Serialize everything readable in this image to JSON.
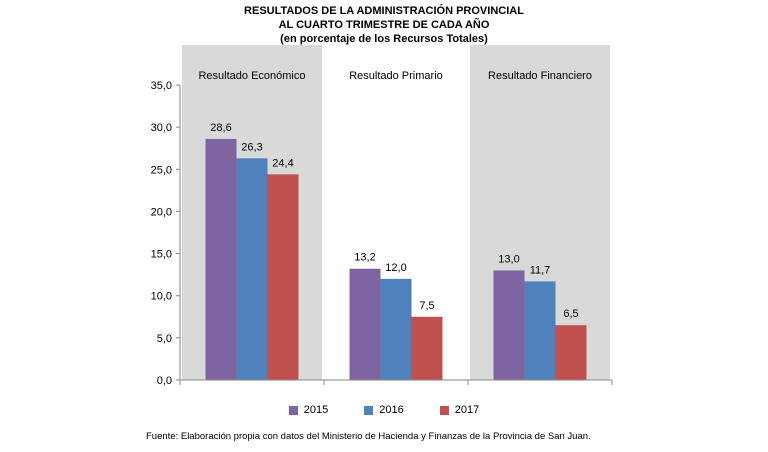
{
  "chart_data": {
    "type": "bar",
    "title": "RESULTADOS DE LA ADMINISTRACIÓN PROVINCIAL",
    "subtitle": "AL CUARTO TRIMESTRE DE CADA AÑO",
    "subtitle2": "(en porcentaje de los Recursos Totales)",
    "categories": [
      "Resultado Económico",
      "Resultado Primario",
      "Resultado Financiero"
    ],
    "category_shading": [
      true,
      false,
      true
    ],
    "series": [
      {
        "name": "2015",
        "color": "#8064A2",
        "values": [
          28.6,
          13.2,
          13.0
        ],
        "labels": [
          "28,6",
          "13,2",
          "13,0"
        ]
      },
      {
        "name": "2016",
        "color": "#4F81BD",
        "values": [
          26.3,
          12.0,
          11.7
        ],
        "labels": [
          "26,3",
          "12,0",
          "11,7"
        ]
      },
      {
        "name": "2017",
        "color": "#C0504D",
        "values": [
          24.4,
          7.5,
          6.5
        ],
        "labels": [
          "24,4",
          "7,5",
          "6,5"
        ]
      }
    ],
    "ylim": [
      0,
      35
    ],
    "yticks": [
      0,
      5,
      10,
      15,
      20,
      25,
      30,
      35
    ],
    "ytick_labels": [
      "0,0",
      "5,0",
      "10,0",
      "15,0",
      "20,0",
      "25,0",
      "30,0",
      "35,0"
    ],
    "grid": false,
    "legend_position": "bottom",
    "shade_color": "#D9D9D9",
    "source": "Fuente: Elaboración propia con datos del Ministerio de Hacienda y Finanzas de la Provincia de San Juan."
  }
}
